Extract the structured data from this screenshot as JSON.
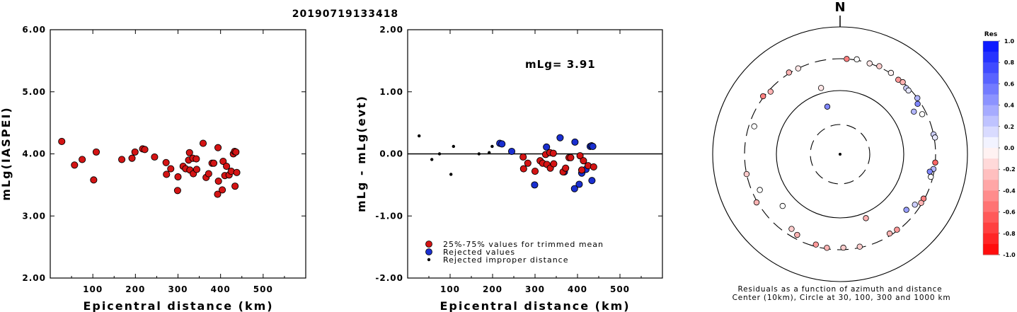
{
  "title": "20190719133418",
  "colors": {
    "accepted": "#d41414",
    "rejected": "#1a2fd0",
    "improper": "#000000"
  },
  "chart_data": [
    {
      "type": "scatter",
      "ylabel": "mLg(IASPEI)",
      "xlabel": "Epicentral distance (km)",
      "xlim": [
        0,
        600
      ],
      "ylim": [
        2.0,
        6.0
      ],
      "x_ticks": [
        "100",
        "200",
        "300",
        "400",
        "500"
      ],
      "y_ticks": [
        "2.00",
        "3.00",
        "4.00",
        "5.00",
        "6.00"
      ],
      "series": [
        {
          "points": [
            [
              27,
              4.2
            ],
            [
              57,
              3.82
            ],
            [
              75,
              3.91
            ],
            [
              102,
              3.58
            ],
            [
              108,
              4.03
            ],
            [
              168,
              3.91
            ],
            [
              192,
              3.93
            ],
            [
              199,
              4.03
            ],
            [
              217,
              4.08
            ],
            [
              222,
              4.07
            ],
            [
              245,
              3.95
            ],
            [
              272,
              3.86
            ],
            [
              273,
              3.67
            ],
            [
              283,
              3.76
            ],
            [
              299,
              3.41
            ],
            [
              300,
              3.63
            ],
            [
              312,
              3.8
            ],
            [
              318,
              3.76
            ],
            [
              325,
              3.9
            ],
            [
              327,
              4.02
            ],
            [
              328,
              3.74
            ],
            [
              335,
              3.93
            ],
            [
              336,
              3.68
            ],
            [
              343,
              3.92
            ],
            [
              344,
              3.75
            ],
            [
              359,
              4.17
            ],
            [
              366,
              3.62
            ],
            [
              372,
              3.68
            ],
            [
              380,
              3.85
            ],
            [
              384,
              3.85
            ],
            [
              393,
              3.35
            ],
            [
              394,
              4.1
            ],
            [
              395,
              3.56
            ],
            [
              404,
              3.42
            ],
            [
              406,
              3.88
            ],
            [
              410,
              3.65
            ],
            [
              414,
              3.8
            ],
            [
              420,
              3.66
            ],
            [
              425,
              3.72
            ],
            [
              430,
              4.0
            ],
            [
              433,
              4.04
            ],
            [
              434,
              3.48
            ],
            [
              436,
              4.03
            ],
            [
              438,
              3.7
            ]
          ]
        }
      ]
    },
    {
      "type": "scatter",
      "ylabel": "mLg - mLg(evt)",
      "xlabel": "Epicentral distance (km)",
      "xlim": [
        0,
        600
      ],
      "ylim": [
        -2.0,
        2.0
      ],
      "x_ticks": [
        "100",
        "200",
        "300",
        "400",
        "500"
      ],
      "y_ticks": [
        "-2.00",
        "-1.00",
        "0.00",
        "1.00",
        "2.00"
      ],
      "annotation": "mLg= 3.91",
      "legend": [
        "25%-75% values for trimmed mean",
        "Rejected values",
        "Rejected improper distance"
      ],
      "series": [
        {
          "name": "25%-75% values for trimmed mean",
          "points": [
            [
              272,
              -0.05
            ],
            [
              273,
              -0.24
            ],
            [
              283,
              -0.15
            ],
            [
              300,
              -0.28
            ],
            [
              312,
              -0.11
            ],
            [
              318,
              -0.15
            ],
            [
              325,
              -0.01
            ],
            [
              328,
              -0.17
            ],
            [
              335,
              0.02
            ],
            [
              336,
              -0.23
            ],
            [
              343,
              0.01
            ],
            [
              344,
              -0.16
            ],
            [
              366,
              -0.29
            ],
            [
              372,
              -0.23
            ],
            [
              380,
              -0.06
            ],
            [
              384,
              -0.06
            ],
            [
              406,
              -0.03
            ],
            [
              410,
              -0.26
            ],
            [
              414,
              -0.11
            ],
            [
              425,
              -0.19
            ],
            [
              438,
              -0.21
            ]
          ]
        },
        {
          "name": "Rejected values",
          "points": [
            [
              217,
              0.17
            ],
            [
              222,
              0.16
            ],
            [
              245,
              0.04
            ],
            [
              299,
              -0.5
            ],
            [
              327,
              0.11
            ],
            [
              359,
              0.26
            ],
            [
              369,
              -0.29
            ],
            [
              393,
              -0.56
            ],
            [
              394,
              0.19
            ],
            [
              404,
              -0.49
            ],
            [
              410,
              -0.31
            ],
            [
              420,
              -0.25
            ],
            [
              430,
              0.12
            ],
            [
              433,
              0.13
            ],
            [
              434,
              -0.43
            ],
            [
              436,
              0.12
            ]
          ]
        },
        {
          "name": "Rejected improper distance",
          "points": [
            [
              27,
              0.29
            ],
            [
              57,
              -0.09
            ],
            [
              75,
              0.0
            ],
            [
              102,
              -0.33
            ],
            [
              108,
              0.12
            ],
            [
              168,
              0.0
            ],
            [
              192,
              0.02
            ],
            [
              199,
              0.12
            ]
          ]
        }
      ]
    },
    {
      "type": "polar-scatter",
      "north_label": "N",
      "caption_line1": "Residuals as a function of azimuth and distance",
      "caption_line2": "Center (10km), Circle at 30, 100, 300 and 1000 km",
      "colorbar": {
        "title": "Res",
        "ticks": [
          "1.0",
          "0.8",
          "0.6",
          "0.4",
          "0.2",
          "0.0",
          "-0.2",
          "-0.4",
          "-0.6",
          "-0.8",
          "-1.0"
        ]
      },
      "points": [
        {
          "az": 4,
          "dist": 300,
          "res": -0.5
        },
        {
          "az": 10,
          "dist": 310,
          "res": 0.0
        },
        {
          "az": 18,
          "dist": 300,
          "res": -0.1
        },
        {
          "az": 24,
          "dist": 310,
          "res": -0.2
        },
        {
          "az": 32,
          "dist": 305,
          "res": -0.05
        },
        {
          "az": 38,
          "dist": 290,
          "res": -0.4
        },
        {
          "az": 41,
          "dist": 300,
          "res": -0.3
        },
        {
          "az": 45,
          "dist": 280,
          "res": 0.2
        },
        {
          "az": 47,
          "dist": 280,
          "res": 0.1
        },
        {
          "az": 54,
          "dist": 300,
          "res": 0.3
        },
        {
          "az": 57,
          "dist": 270,
          "res": 0.5
        },
        {
          "az": 60,
          "dist": 210,
          "res": 0.3
        },
        {
          "az": 64,
          "dist": 260,
          "res": 0.0
        },
        {
          "az": 78,
          "dist": 300,
          "res": 0.2
        },
        {
          "az": 80,
          "dist": 310,
          "res": 0.1
        },
        {
          "az": 95,
          "dist": 300,
          "res": -0.6
        },
        {
          "az": 99,
          "dist": 290,
          "res": 0.3
        },
        {
          "az": 101,
          "dist": 260,
          "res": 0.5
        },
        {
          "az": 104,
          "dist": 280,
          "res": 0.0
        },
        {
          "az": 118,
          "dist": 290,
          "res": -0.5
        },
        {
          "az": 121,
          "dist": 290,
          "res": -0.3
        },
        {
          "az": 124,
          "dist": 250,
          "res": 0.2
        },
        {
          "az": 130,
          "dist": 220,
          "res": 0.4
        },
        {
          "az": 143,
          "dist": 290,
          "res": -0.4
        },
        {
          "az": 148,
          "dist": 280,
          "res": -0.3
        },
        {
          "az": 158,
          "dist": 120,
          "res": -0.3
        },
        {
          "az": 168,
          "dist": 290,
          "res": -0.2
        },
        {
          "az": 178,
          "dist": 280,
          "res": -0.2
        },
        {
          "az": 188,
          "dist": 290,
          "res": -0.3
        },
        {
          "az": 195,
          "dist": 280,
          "res": -0.4
        },
        {
          "az": 208,
          "dist": 260,
          "res": -0.3
        },
        {
          "az": 213,
          "dist": 240,
          "res": -0.2
        },
        {
          "az": 228,
          "dist": 160,
          "res": 0.0
        },
        {
          "az": 240,
          "dist": 310,
          "res": -0.3
        },
        {
          "az": 246,
          "dist": 230,
          "res": 0.0
        },
        {
          "az": 258,
          "dist": 300,
          "res": -0.2
        },
        {
          "az": 288,
          "dist": 250,
          "res": 0.0
        },
        {
          "az": 307,
          "dist": 310,
          "res": -0.5
        },
        {
          "az": 312,
          "dist": 280,
          "res": -0.3
        },
        {
          "az": 328,
          "dist": 310,
          "res": -0.3
        },
        {
          "az": 334,
          "dist": 300,
          "res": -0.1
        },
        {
          "az": 344,
          "dist": 120,
          "res": -0.1
        },
        {
          "az": 345,
          "dist": 60,
          "res": 0.5
        }
      ]
    }
  ]
}
